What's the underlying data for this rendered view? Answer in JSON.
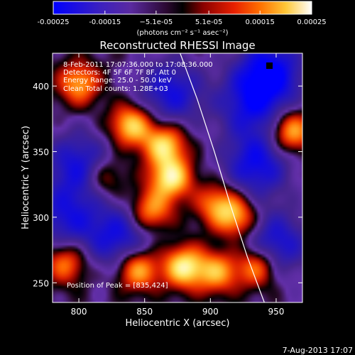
{
  "chart_data": {
    "type": "heatmap",
    "title": "Reconstructed RHESSI Image",
    "xlabel": "Heliocentric X (arcsec)",
    "ylabel": "Heliocentric Y (arcsec)",
    "xlim": [
      780,
      970
    ],
    "ylim": [
      235,
      425
    ],
    "x_ticks": [
      800,
      850,
      900,
      950
    ],
    "x_tick_labels": [
      "800",
      "850",
      "900",
      "950"
    ],
    "y_ticks": [
      250,
      300,
      350,
      400
    ],
    "y_tick_labels": [
      "250",
      "300",
      "350",
      "400"
    ],
    "colorbar": {
      "range": [
        -0.00025,
        0.00025
      ],
      "ticks": [
        -0.00025,
        -0.00015,
        -5.1e-05,
        5.1e-05,
        0.00015,
        0.00025
      ],
      "tick_labels": [
        "-0.00025",
        "-0.00015",
        "−5.1e-05",
        "5.1e-05",
        "0.00015",
        "0.00025"
      ],
      "unit_label": "(photons cm⁻² s⁻¹ asec⁻²)",
      "colors": [
        "#0000ff",
        "#2a1aa0",
        "#3a237a",
        "#6030a0",
        "#200020",
        "#000000",
        "#800000",
        "#e02000",
        "#ff6a00",
        "#ffc030",
        "#ffff70",
        "#ffffff"
      ]
    },
    "annotations": {
      "time_range": "8-Feb-2011 17:07:36.000 to 17:08:36.000",
      "detectors": "Detectors: 4F 5F 6F 7F 8F, Att 0",
      "energy_range": "Energy Range: 25.0 - 50.0 keV",
      "clean_info": "Clean    Total counts: 1.28E+03",
      "peak_position": "Position of Peak = [835,424]"
    },
    "limb_curve": {
      "points": [
        [
          877,
          425
        ],
        [
          890,
          390
        ],
        [
          903,
          350
        ],
        [
          915,
          310
        ],
        [
          928,
          270
        ],
        [
          941,
          235
        ]
      ]
    },
    "hot_blobs": [
      {
        "x": 840,
        "y": 370,
        "weight": 1.0
      },
      {
        "x": 865,
        "y": 355,
        "weight": 1.0
      },
      {
        "x": 870,
        "y": 330,
        "weight": 1.1
      },
      {
        "x": 855,
        "y": 305,
        "weight": 0.8
      },
      {
        "x": 845,
        "y": 260,
        "weight": 0.9
      },
      {
        "x": 880,
        "y": 262,
        "weight": 1.1
      },
      {
        "x": 905,
        "y": 258,
        "weight": 0.8
      },
      {
        "x": 905,
        "y": 310,
        "weight": 0.7
      },
      {
        "x": 920,
        "y": 300,
        "weight": 0.8
      },
      {
        "x": 962,
        "y": 365,
        "weight": 0.9
      },
      {
        "x": 800,
        "y": 402,
        "weight": 0.8
      },
      {
        "x": 790,
        "y": 265,
        "weight": 0.7
      },
      {
        "x": 935,
        "y": 262,
        "weight": 0.8
      },
      {
        "x": 820,
        "y": 330,
        "weight": 0.5
      }
    ],
    "cold_blobs": [
      {
        "x": 945,
        "y": 410,
        "weight": 1.2
      },
      {
        "x": 930,
        "y": 385,
        "weight": 0.8
      },
      {
        "x": 870,
        "y": 395,
        "weight": 0.9
      },
      {
        "x": 800,
        "y": 340,
        "weight": 0.9
      },
      {
        "x": 830,
        "y": 285,
        "weight": 0.9
      },
      {
        "x": 935,
        "y": 340,
        "weight": 1.0
      },
      {
        "x": 950,
        "y": 280,
        "weight": 0.9
      },
      {
        "x": 790,
        "y": 300,
        "weight": 0.8
      }
    ]
  },
  "footer": {
    "date_stamp": "7-Aug-2013 17:07"
  }
}
